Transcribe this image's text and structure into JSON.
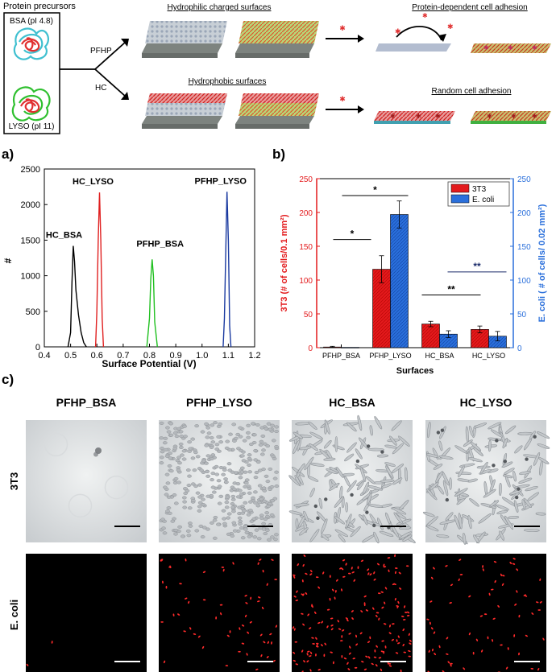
{
  "schematic": {
    "precursors_title": "Protein precursors",
    "bsa_label": "BSA (pI 4.8)",
    "lyso_label": "LYSO (pI 11)",
    "route_top": "PFHP",
    "route_bottom": "HC",
    "hydrophilic_title": "Hydrophilic charged surfaces",
    "hydrophobic_title": "Hydrophobic surfaces",
    "protein_dependent_title": "Protein-dependent cell adhesion",
    "random_title": "Random cell adhesion",
    "colors": {
      "bsa": "#40c0d0",
      "lyso": "#30c030",
      "core": "#e03030",
      "substrate": "#8a8f8a"
    }
  },
  "panel_a_label": "a)",
  "panel_b_label": "b)",
  "panel_c_label": "c)",
  "chart_data": [
    {
      "type": "line",
      "xlabel": "Surface Potential (V)",
      "ylabel": "#",
      "xlim": [
        0.4,
        1.2
      ],
      "ylim": [
        0,
        2500
      ],
      "xticks": [
        "0.4",
        "0.5",
        "0.6",
        "0.7",
        "0.8",
        "0.9",
        "1.0",
        "1.1",
        "1.2"
      ],
      "yticks": [
        "0",
        "500",
        "1000",
        "1500",
        "2000",
        "2500"
      ],
      "grid": false,
      "series": [
        {
          "name": "HC_BSA",
          "color": "#000000",
          "x": [
            0.49,
            0.5,
            0.505,
            0.51,
            0.515,
            0.52,
            0.53,
            0.54,
            0.55,
            0.56
          ],
          "y": [
            0,
            200,
            900,
            1420,
            1200,
            800,
            450,
            200,
            60,
            0
          ]
        },
        {
          "name": "HC_LYSO",
          "color": "#e02020",
          "x": [
            0.595,
            0.6,
            0.605,
            0.61,
            0.615,
            0.62,
            0.625
          ],
          "y": [
            0,
            500,
            1500,
            2170,
            1500,
            400,
            0
          ]
        },
        {
          "name": "PFHP_BSA",
          "color": "#20c020",
          "x": [
            0.79,
            0.8,
            0.805,
            0.81,
            0.815,
            0.82,
            0.83
          ],
          "y": [
            0,
            400,
            950,
            1230,
            1000,
            350,
            0
          ]
        },
        {
          "name": "PFHP_LYSO",
          "color": "#1a3aa0",
          "x": [
            1.08,
            1.085,
            1.09,
            1.095,
            1.1,
            1.105,
            1.11
          ],
          "y": [
            0,
            400,
            1300,
            2180,
            1500,
            300,
            0
          ]
        }
      ]
    },
    {
      "type": "bar",
      "xlabel": "Surfaces",
      "ylabel": "3T3 (# of cells/0.1 mm²)",
      "ylabel_right": "E. coli ( # of cells/ 0.02 mm²)",
      "ylim": [
        0,
        250
      ],
      "yticks": [
        "0",
        "50",
        "100",
        "150",
        "200",
        "250"
      ],
      "categories": [
        "PFHP_BSA",
        "PFHP_LYSO",
        "HC_BSA",
        "HC_LYSO"
      ],
      "legend_position": "top-right",
      "series": [
        {
          "name": "3T3",
          "color": "#e31a1c",
          "values": [
            1,
            116,
            35,
            27
          ],
          "errors": [
            1,
            20,
            4,
            5
          ]
        },
        {
          "name": "E. coli",
          "color": "#2a6fdb",
          "values": [
            0.5,
            197,
            20,
            17
          ],
          "errors": [
            0.5,
            20,
            5,
            7
          ]
        }
      ],
      "significance": [
        {
          "label": "*",
          "from": 0,
          "to": 1,
          "y": 160,
          "color": "#000000"
        },
        {
          "label": "*",
          "from": 1,
          "to": 1,
          "y": 225,
          "color": "#000000"
        },
        {
          "label": "**",
          "from": 2,
          "to": 3,
          "y": 78,
          "color": "#000000"
        },
        {
          "label": "**",
          "from": 2,
          "to": 3,
          "y": 112,
          "color": "#1a2a6a"
        }
      ]
    }
  ],
  "micrographs": {
    "columns": [
      "PFHP_BSA",
      "PFHP_LYSO",
      "HC_BSA",
      "HC_LYSO"
    ],
    "rows": [
      "3T3",
      "E. coli"
    ],
    "ecoli_density": [
      2,
      60,
      180,
      70
    ],
    "cell_density": [
      0,
      1,
      0.35,
      0.3
    ]
  }
}
